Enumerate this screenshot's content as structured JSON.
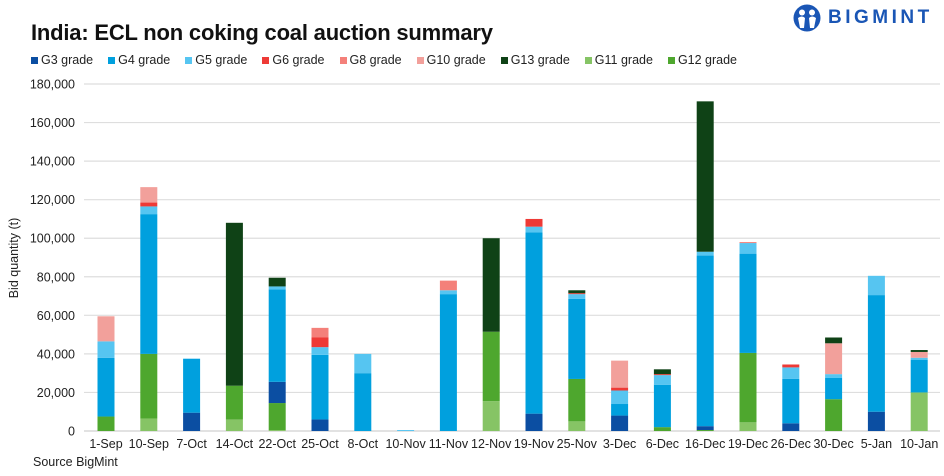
{
  "header": {
    "title": "India: ECL non coking coal auction summary",
    "logo_text": "BIGMINT",
    "source": "Source BigMint"
  },
  "chart_data": {
    "type": "bar",
    "stacked": true,
    "title": "India: ECL non coking coal auction summary",
    "xlabel": "",
    "ylabel": "Bid quantity (t)",
    "ylim": [
      0,
      180000
    ],
    "yticks": [
      0,
      20000,
      40000,
      60000,
      80000,
      100000,
      120000,
      140000,
      160000,
      180000
    ],
    "ytick_labels": [
      "0",
      "20,000",
      "40,000",
      "60,000",
      "80,000",
      "100,000",
      "120,000",
      "140,000",
      "160,000",
      "180,000"
    ],
    "grid": true,
    "legend_position": "top-left",
    "categories": [
      "1-Sep",
      "10-Sep",
      "7-Oct",
      "14-Oct",
      "22-Oct",
      "25-Oct",
      "8-Oct",
      "10-Nov",
      "11-Nov",
      "12-Nov",
      "19-Nov",
      "25-Nov",
      "3-Dec",
      "6-Dec",
      "16-Dec",
      "19-Dec",
      "26-Dec",
      "30-Dec",
      "5-Jan",
      "10-Jan"
    ],
    "legend_order": [
      "G3 grade",
      "G4 grade",
      "G5 grade",
      "G6 grade",
      "G8 grade",
      "G10 grade",
      "G13 grade",
      "G11 grade",
      "G12 grade"
    ],
    "stack_order": [
      "G11 grade",
      "G12 grade",
      "G3 grade",
      "G4 grade",
      "G5 grade",
      "G6 grade",
      "G8 grade",
      "G10 grade",
      "G13 grade"
    ],
    "series": [
      {
        "name": "G3 grade",
        "color": "#0b4ea2",
        "values": [
          0,
          0,
          9500,
          0,
          11000,
          6000,
          0,
          0,
          0,
          0,
          9000,
          0,
          8000,
          0,
          2000,
          0,
          4000,
          0,
          10000,
          0
        ]
      },
      {
        "name": "G4 grade",
        "color": "#00a0de",
        "values": [
          30500,
          72500,
          28000,
          0,
          48000,
          33500,
          30000,
          0,
          71000,
          0,
          94000,
          41500,
          6000,
          22000,
          88500,
          51500,
          23000,
          11000,
          60500,
          17000
        ]
      },
      {
        "name": "G5 grade",
        "color": "#56c5f1",
        "values": [
          8500,
          4000,
          0,
          0,
          1500,
          4000,
          10000,
          500,
          2000,
          0,
          3000,
          2500,
          7000,
          5000,
          2000,
          5500,
          6000,
          2000,
          10000,
          1000
        ]
      },
      {
        "name": "G6 grade",
        "color": "#ee3a36",
        "values": [
          0,
          2000,
          0,
          0,
          0,
          5000,
          0,
          0,
          0,
          0,
          4000,
          500,
          1500,
          500,
          0,
          0,
          1500,
          0,
          0,
          0
        ]
      },
      {
        "name": "G8 grade",
        "color": "#f4807a",
        "values": [
          0,
          0,
          0,
          0,
          0,
          5000,
          0,
          0,
          5000,
          0,
          0,
          0,
          0,
          0,
          0,
          500,
          0,
          0,
          0,
          0
        ]
      },
      {
        "name": "G10 grade",
        "color": "#f2a09b",
        "values": [
          13000,
          8000,
          0,
          0,
          0,
          0,
          0,
          0,
          0,
          0,
          0,
          0,
          14000,
          0,
          0,
          0,
          0,
          16000,
          0,
          3000
        ]
      },
      {
        "name": "G13 grade",
        "color": "#0f4216",
        "values": [
          0,
          0,
          0,
          84500,
          4500,
          0,
          0,
          0,
          0,
          48500,
          0,
          1500,
          0,
          2500,
          78000,
          0,
          0,
          3000,
          0,
          1000
        ]
      },
      {
        "name": "G11 grade",
        "color": "#86c465",
        "values": [
          0,
          6500,
          0,
          6000,
          500,
          0,
          0,
          0,
          0,
          15500,
          0,
          5000,
          0,
          0,
          0,
          4500,
          0,
          0,
          0,
          20000
        ]
      },
      {
        "name": "G12 grade",
        "color": "#4ea72e",
        "values": [
          7500,
          33500,
          0,
          17500,
          14000,
          0,
          0,
          0,
          0,
          36000,
          0,
          22000,
          0,
          2000,
          500,
          36000,
          0,
          16500,
          0,
          0
        ]
      }
    ]
  }
}
